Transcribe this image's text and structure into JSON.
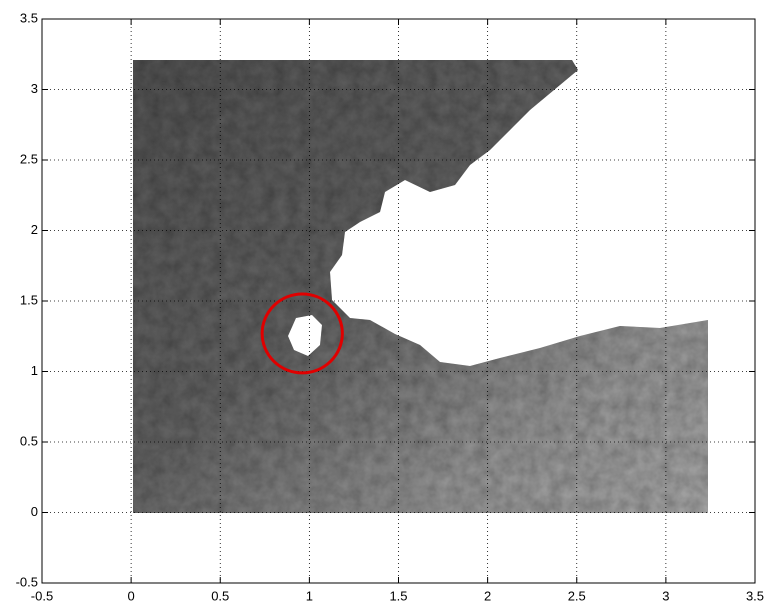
{
  "chart_data": {
    "type": "surface-map",
    "xlim": [
      -0.5,
      3.5
    ],
    "ylim": [
      -0.5,
      3.5
    ],
    "xticks": [
      -0.5,
      0,
      0.5,
      1,
      1.5,
      2,
      2.5,
      3,
      3.5
    ],
    "yticks": [
      -0.5,
      0,
      0.5,
      1,
      1.5,
      2,
      2.5,
      3,
      3.5
    ],
    "grid": true,
    "marker": {
      "shape": "circle",
      "color": "#e00000",
      "center": [
        0.96,
        1.27
      ],
      "radius_x": 0.225,
      "radius_y": 0.28
    }
  }
}
